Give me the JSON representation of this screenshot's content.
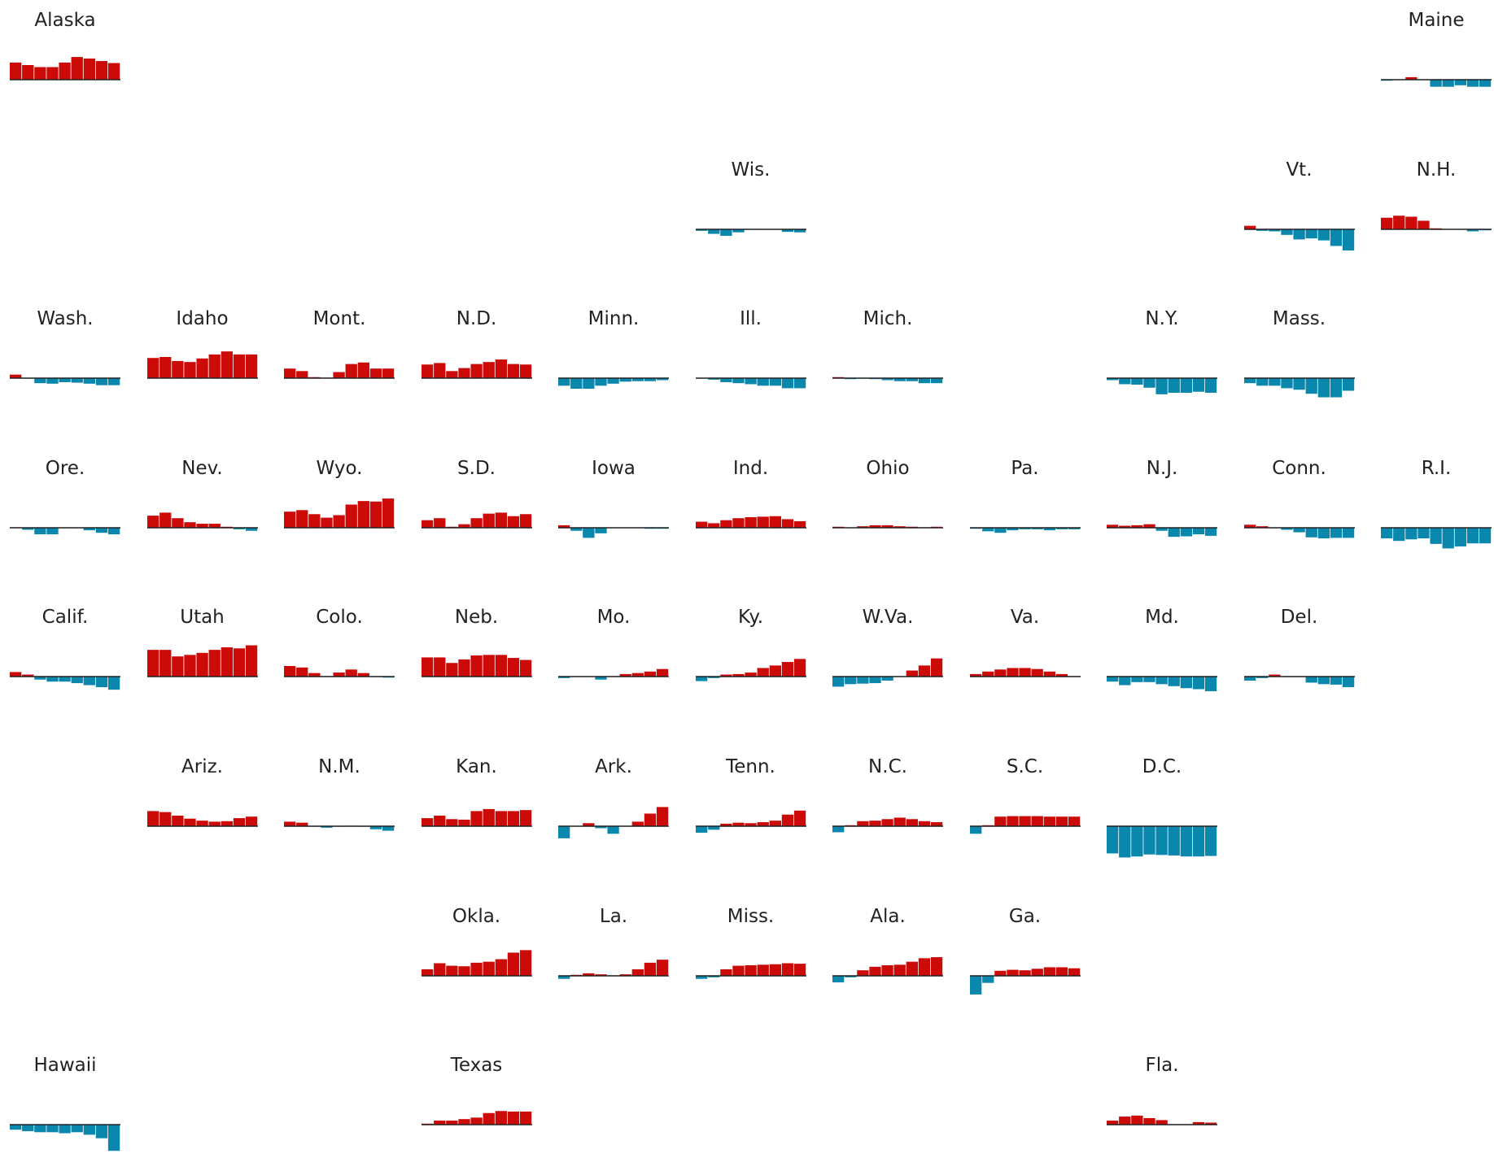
{
  "chart_data": {
    "type": "bar",
    "layout": "small-multiples tile grid map of U.S. states",
    "bars_per_state": 9,
    "colors": {
      "positive": "#cc0a08",
      "negative": "#0a87ad",
      "baseline": "#222222"
    },
    "states": [
      {
        "name": "Alaska",
        "row": 0,
        "col": 0,
        "values": [
          34,
          29,
          25,
          25,
          34,
          45,
          42,
          37,
          33
        ]
      },
      {
        "name": "Maine",
        "row": 0,
        "col": 10,
        "values": [
          -2,
          -1,
          5,
          -1,
          -14,
          -14,
          -11,
          -14,
          -14
        ]
      },
      {
        "name": "Wis.",
        "row": 1,
        "col": 5,
        "values": [
          -3,
          -9,
          -13,
          -6,
          -1,
          -1,
          -1,
          -5,
          -6
        ]
      },
      {
        "name": "Vt.",
        "row": 1,
        "col": 9,
        "values": [
          7,
          -3,
          -4,
          -11,
          -20,
          -18,
          -22,
          -33,
          -42
        ]
      },
      {
        "name": "N.H.",
        "row": 1,
        "col": 10,
        "values": [
          23,
          27,
          25,
          17,
          2,
          0,
          0,
          -4,
          -2
        ]
      },
      {
        "name": "Wash.",
        "row": 2,
        "col": 0,
        "values": [
          7,
          -1,
          -10,
          -11,
          -8,
          -9,
          -11,
          -14,
          -14
        ]
      },
      {
        "name": "Idaho",
        "row": 2,
        "col": 1,
        "values": [
          40,
          42,
          34,
          32,
          39,
          47,
          53,
          47,
          47
        ]
      },
      {
        "name": "Mont.",
        "row": 2,
        "col": 2,
        "values": [
          19,
          14,
          2,
          1,
          12,
          28,
          31,
          19,
          19
        ]
      },
      {
        "name": "N.D.",
        "row": 2,
        "col": 3,
        "values": [
          27,
          30,
          14,
          20,
          28,
          32,
          37,
          28,
          27
        ]
      },
      {
        "name": "Minn.",
        "row": 2,
        "col": 4,
        "values": [
          -15,
          -21,
          -21,
          -15,
          -11,
          -7,
          -6,
          -6,
          -4
        ]
      },
      {
        "name": "Ill.",
        "row": 2,
        "col": 5,
        "values": [
          -1,
          -3,
          -8,
          -10,
          -12,
          -15,
          -15,
          -20,
          -20
        ]
      },
      {
        "name": "Mich.",
        "row": 2,
        "col": 6,
        "values": [
          2,
          -2,
          -1,
          -2,
          -4,
          -6,
          -6,
          -10,
          -10
        ]
      },
      {
        "name": "N.Y.",
        "row": 2,
        "col": 8,
        "values": [
          -4,
          -12,
          -13,
          -19,
          -32,
          -29,
          -29,
          -27,
          -29
        ]
      },
      {
        "name": "Mass.",
        "row": 2,
        "col": 9,
        "values": [
          -10,
          -15,
          -15,
          -20,
          -23,
          -31,
          -38,
          -38,
          -25
        ]
      },
      {
        "name": "Ore.",
        "row": 3,
        "col": 0,
        "values": [
          1,
          -4,
          -13,
          -13,
          -1,
          -1,
          -5,
          -10,
          -13
        ]
      },
      {
        "name": "Nev.",
        "row": 3,
        "col": 1,
        "values": [
          24,
          30,
          19,
          11,
          8,
          8,
          2,
          -3,
          -6
        ]
      },
      {
        "name": "Wyo.",
        "row": 3,
        "col": 2,
        "values": [
          32,
          35,
          27,
          20,
          25,
          46,
          53,
          52,
          58
        ]
      },
      {
        "name": "S.D.",
        "row": 3,
        "col": 3,
        "values": [
          15,
          19,
          2,
          7,
          19,
          28,
          30,
          23,
          27
        ]
      },
      {
        "name": "Iowa",
        "row": 3,
        "col": 4,
        "values": [
          5,
          -6,
          -20,
          -11,
          0,
          0,
          0,
          -2,
          -2
        ]
      },
      {
        "name": "Ind.",
        "row": 3,
        "col": 5,
        "values": [
          12,
          9,
          15,
          19,
          21,
          22,
          23,
          17,
          13
        ]
      },
      {
        "name": "Ohio",
        "row": 3,
        "col": 6,
        "values": [
          2,
          0,
          3,
          5,
          5,
          3,
          2,
          1,
          2
        ]
      },
      {
        "name": "Pa.",
        "row": 3,
        "col": 7,
        "values": [
          -2,
          -7,
          -10,
          -5,
          -3,
          -3,
          -5,
          -3,
          -3
        ]
      },
      {
        "name": "N.J.",
        "row": 3,
        "col": 8,
        "values": [
          6,
          4,
          5,
          7,
          -6,
          -18,
          -17,
          -13,
          -16
        ]
      },
      {
        "name": "Conn.",
        "row": 3,
        "col": 9,
        "values": [
          6,
          3,
          -1,
          -4,
          -9,
          -19,
          -21,
          -20,
          -20
        ]
      },
      {
        "name": "R.I.",
        "row": 3,
        "col": 10,
        "values": [
          -21,
          -26,
          -23,
          -21,
          -32,
          -41,
          -37,
          -31,
          -31
        ]
      },
      {
        "name": "Calif.",
        "row": 4,
        "col": 0,
        "values": [
          9,
          4,
          -6,
          -10,
          -10,
          -13,
          -17,
          -21,
          -26
        ]
      },
      {
        "name": "Utah",
        "row": 4,
        "col": 1,
        "values": [
          53,
          53,
          40,
          43,
          47,
          53,
          58,
          56,
          62
        ]
      },
      {
        "name": "Colo.",
        "row": 4,
        "col": 2,
        "values": [
          21,
          18,
          7,
          1,
          8,
          14,
          7,
          -1,
          -2
        ]
      },
      {
        "name": "Neb.",
        "row": 4,
        "col": 3,
        "values": [
          38,
          38,
          27,
          34,
          42,
          43,
          43,
          37,
          33
        ]
      },
      {
        "name": "Mo.",
        "row": 4,
        "col": 4,
        "values": [
          -3,
          0,
          0,
          -6,
          1,
          5,
          7,
          10,
          15
        ]
      },
      {
        "name": "Ky.",
        "row": 4,
        "col": 5,
        "values": [
          -9,
          -3,
          4,
          5,
          8,
          17,
          22,
          29,
          35
        ]
      },
      {
        "name": "W.Va.",
        "row": 4,
        "col": 6,
        "values": [
          -20,
          -15,
          -14,
          -13,
          -8,
          0,
          12,
          22,
          36
        ]
      },
      {
        "name": "Va.",
        "row": 4,
        "col": 7,
        "values": [
          5,
          10,
          14,
          17,
          17,
          15,
          10,
          5,
          1
        ]
      },
      {
        "name": "Md.",
        "row": 4,
        "col": 8,
        "values": [
          -10,
          -17,
          -11,
          -11,
          -15,
          -19,
          -23,
          -25,
          -29
        ]
      },
      {
        "name": "Del.",
        "row": 4,
        "col": 9,
        "values": [
          -8,
          -3,
          4,
          -1,
          -1,
          -12,
          -15,
          -16,
          -21
        ]
      },
      {
        "name": "Ariz.",
        "row": 5,
        "col": 1,
        "values": [
          30,
          28,
          21,
          15,
          11,
          9,
          10,
          16,
          19
        ]
      },
      {
        "name": "N.M.",
        "row": 5,
        "col": 2,
        "values": [
          9,
          7,
          -1,
          -3,
          -1,
          1,
          -1,
          -6,
          -9
        ]
      },
      {
        "name": "Kan.",
        "row": 5,
        "col": 3,
        "values": [
          16,
          21,
          14,
          13,
          30,
          34,
          30,
          30,
          32
        ]
      },
      {
        "name": "Ark.",
        "row": 5,
        "col": 4,
        "values": [
          -24,
          0,
          6,
          -4,
          -15,
          0,
          9,
          25,
          38
        ]
      },
      {
        "name": "Tenn.",
        "row": 5,
        "col": 5,
        "values": [
          -13,
          -7,
          5,
          7,
          6,
          8,
          11,
          23,
          31
        ]
      },
      {
        "name": "N.C.",
        "row": 5,
        "col": 6,
        "values": [
          -12,
          2,
          10,
          11,
          14,
          17,
          14,
          10,
          8
        ]
      },
      {
        "name": "S.C.",
        "row": 5,
        "col": 7,
        "values": [
          -15,
          2,
          19,
          20,
          20,
          20,
          19,
          19,
          19
        ]
      },
      {
        "name": "D.C.",
        "row": 5,
        "col": 8,
        "values": [
          -54,
          -62,
          -60,
          -56,
          -57,
          -58,
          -60,
          -60,
          -59
        ]
      },
      {
        "name": "Okla.",
        "row": 6,
        "col": 3,
        "values": [
          13,
          25,
          20,
          19,
          26,
          28,
          33,
          46,
          51
        ]
      },
      {
        "name": "La.",
        "row": 6,
        "col": 4,
        "values": [
          -6,
          2,
          5,
          3,
          1,
          3,
          13,
          26,
          32
        ]
      },
      {
        "name": "Miss.",
        "row": 6,
        "col": 5,
        "values": [
          -6,
          -3,
          13,
          20,
          21,
          22,
          23,
          25,
          24
        ]
      },
      {
        "name": "Ala.",
        "row": 6,
        "col": 6,
        "values": [
          -13,
          -3,
          11,
          18,
          21,
          22,
          28,
          35,
          37
        ]
      },
      {
        "name": "Ga.",
        "row": 6,
        "col": 7,
        "values": [
          -37,
          -14,
          10,
          12,
          11,
          14,
          17,
          17,
          15
        ]
      },
      {
        "name": "Hawaii",
        "row": 7,
        "col": 0,
        "values": [
          -10,
          -13,
          -15,
          -15,
          -17,
          -15,
          -20,
          -27,
          -52
        ]
      },
      {
        "name": "Texas",
        "row": 7,
        "col": 3,
        "values": [
          2,
          8,
          8,
          11,
          14,
          23,
          27,
          26,
          26
        ]
      },
      {
        "name": "Fla.",
        "row": 7,
        "col": 8,
        "values": [
          8,
          16,
          18,
          13,
          9,
          1,
          1,
          5,
          4
        ]
      }
    ]
  }
}
